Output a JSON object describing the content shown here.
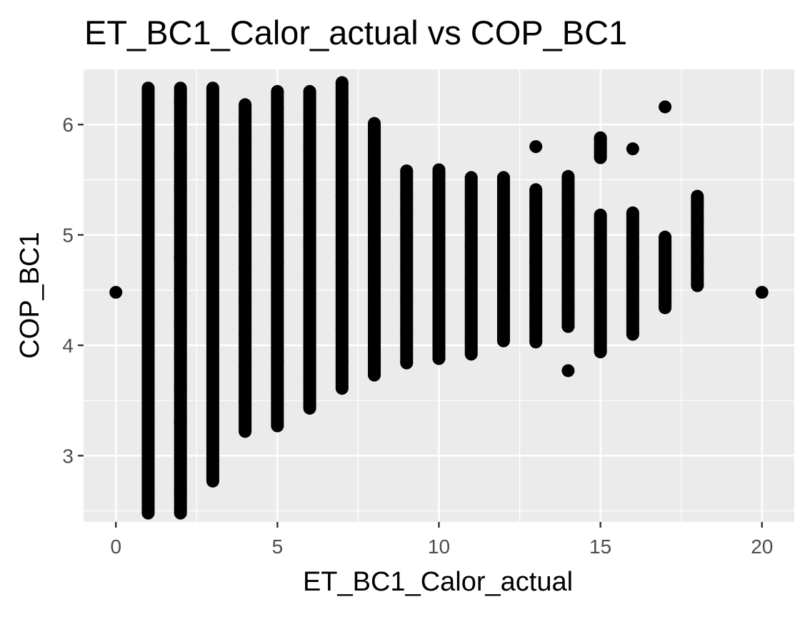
{
  "chart_data": {
    "type": "scatter",
    "title": "ET_BC1_Calor_actual vs COP_BC1",
    "xlabel": "ET_BC1_Calor_actual",
    "ylabel": "COP_BC1",
    "xlim": [
      -1,
      21
    ],
    "ylim": [
      2.4,
      6.5
    ],
    "x_ticks": [
      0,
      5,
      10,
      15,
      20
    ],
    "y_ticks": [
      3,
      4,
      5,
      6
    ],
    "x_minor_ticks": [
      2.5,
      7.5,
      12.5,
      17.5
    ],
    "y_minor_ticks": [
      2.5,
      3.5,
      4.5,
      5.5
    ],
    "grid": true,
    "point_color": "#000000",
    "panel_color": "#ebebeb",
    "series": [
      {
        "points": [
          {
            "x": 0,
            "y": 4.48
          },
          {
            "x": 1,
            "y": 2.48
          },
          {
            "x": 1,
            "y": 2.7
          },
          {
            "x": 1,
            "y": 3.0
          },
          {
            "x": 1,
            "y": 3.3
          },
          {
            "x": 1,
            "y": 3.6
          },
          {
            "x": 1,
            "y": 3.9
          },
          {
            "x": 1,
            "y": 4.2
          },
          {
            "x": 1,
            "y": 4.5
          },
          {
            "x": 1,
            "y": 4.8
          },
          {
            "x": 1,
            "y": 5.1
          },
          {
            "x": 1,
            "y": 5.45
          },
          {
            "x": 1,
            "y": 5.65
          },
          {
            "x": 1,
            "y": 5.8
          },
          {
            "x": 1,
            "y": 6.0
          },
          {
            "x": 1,
            "y": 6.2
          },
          {
            "x": 1,
            "y": 6.33
          },
          {
            "x": 2,
            "y": 2.48
          },
          {
            "x": 2,
            "y": 2.7
          },
          {
            "x": 2,
            "y": 3.0
          },
          {
            "x": 2,
            "y": 3.3
          },
          {
            "x": 2,
            "y": 3.6
          },
          {
            "x": 2,
            "y": 3.9
          },
          {
            "x": 2,
            "y": 4.2
          },
          {
            "x": 2,
            "y": 4.5
          },
          {
            "x": 2,
            "y": 4.8
          },
          {
            "x": 2,
            "y": 5.1
          },
          {
            "x": 2,
            "y": 5.4
          },
          {
            "x": 2,
            "y": 5.7
          },
          {
            "x": 2,
            "y": 6.0
          },
          {
            "x": 2,
            "y": 6.2
          },
          {
            "x": 2,
            "y": 6.33
          },
          {
            "x": 3,
            "y": 2.77
          },
          {
            "x": 3,
            "y": 2.95
          },
          {
            "x": 3,
            "y": 3.1
          },
          {
            "x": 3,
            "y": 3.4
          },
          {
            "x": 3,
            "y": 3.7
          },
          {
            "x": 3,
            "y": 4.0
          },
          {
            "x": 3,
            "y": 4.3
          },
          {
            "x": 3,
            "y": 4.6
          },
          {
            "x": 3,
            "y": 4.9
          },
          {
            "x": 3,
            "y": 5.2
          },
          {
            "x": 3,
            "y": 5.5
          },
          {
            "x": 3,
            "y": 5.8
          },
          {
            "x": 3,
            "y": 6.1
          },
          {
            "x": 3,
            "y": 6.33
          },
          {
            "x": 4,
            "y": 3.22
          },
          {
            "x": 4,
            "y": 3.5
          },
          {
            "x": 4,
            "y": 3.8
          },
          {
            "x": 4,
            "y": 4.1
          },
          {
            "x": 4,
            "y": 4.4
          },
          {
            "x": 4,
            "y": 4.7
          },
          {
            "x": 4,
            "y": 5.0
          },
          {
            "x": 4,
            "y": 5.3
          },
          {
            "x": 4,
            "y": 5.6
          },
          {
            "x": 4,
            "y": 5.85
          },
          {
            "x": 4,
            "y": 6.05
          },
          {
            "x": 4,
            "y": 6.18
          },
          {
            "x": 5,
            "y": 3.27
          },
          {
            "x": 5,
            "y": 3.55
          },
          {
            "x": 5,
            "y": 3.85
          },
          {
            "x": 5,
            "y": 4.15
          },
          {
            "x": 5,
            "y": 4.45
          },
          {
            "x": 5,
            "y": 4.75
          },
          {
            "x": 5,
            "y": 5.05
          },
          {
            "x": 5,
            "y": 5.35
          },
          {
            "x": 5,
            "y": 5.65
          },
          {
            "x": 5,
            "y": 5.95
          },
          {
            "x": 5,
            "y": 6.15
          },
          {
            "x": 5,
            "y": 6.3
          },
          {
            "x": 6,
            "y": 3.43
          },
          {
            "x": 6,
            "y": 3.7
          },
          {
            "x": 6,
            "y": 4.0
          },
          {
            "x": 6,
            "y": 4.3
          },
          {
            "x": 6,
            "y": 4.6
          },
          {
            "x": 6,
            "y": 4.9
          },
          {
            "x": 6,
            "y": 5.2
          },
          {
            "x": 6,
            "y": 5.5
          },
          {
            "x": 6,
            "y": 5.8
          },
          {
            "x": 6,
            "y": 6.08
          },
          {
            "x": 6,
            "y": 6.3
          },
          {
            "x": 7,
            "y": 3.61
          },
          {
            "x": 7,
            "y": 3.85
          },
          {
            "x": 7,
            "y": 4.15
          },
          {
            "x": 7,
            "y": 4.45
          },
          {
            "x": 7,
            "y": 4.75
          },
          {
            "x": 7,
            "y": 5.05
          },
          {
            "x": 7,
            "y": 5.35
          },
          {
            "x": 7,
            "y": 5.65
          },
          {
            "x": 7,
            "y": 5.95
          },
          {
            "x": 7,
            "y": 6.2
          },
          {
            "x": 7,
            "y": 6.38
          },
          {
            "x": 8,
            "y": 3.73
          },
          {
            "x": 8,
            "y": 4.0
          },
          {
            "x": 8,
            "y": 4.3
          },
          {
            "x": 8,
            "y": 4.6
          },
          {
            "x": 8,
            "y": 4.9
          },
          {
            "x": 8,
            "y": 5.2
          },
          {
            "x": 8,
            "y": 5.5
          },
          {
            "x": 8,
            "y": 5.75
          },
          {
            "x": 8,
            "y": 5.95
          },
          {
            "x": 8,
            "y": 6.01
          },
          {
            "x": 9,
            "y": 3.84
          },
          {
            "x": 9,
            "y": 4.1
          },
          {
            "x": 9,
            "y": 4.4
          },
          {
            "x": 9,
            "y": 4.7
          },
          {
            "x": 9,
            "y": 5.0
          },
          {
            "x": 9,
            "y": 5.2
          },
          {
            "x": 9,
            "y": 5.35
          },
          {
            "x": 9,
            "y": 5.58
          },
          {
            "x": 10,
            "y": 3.88
          },
          {
            "x": 10,
            "y": 4.1
          },
          {
            "x": 10,
            "y": 4.4
          },
          {
            "x": 10,
            "y": 4.7
          },
          {
            "x": 10,
            "y": 5.0
          },
          {
            "x": 10,
            "y": 5.25
          },
          {
            "x": 10,
            "y": 5.38
          },
          {
            "x": 10,
            "y": 5.59
          },
          {
            "x": 11,
            "y": 3.92
          },
          {
            "x": 11,
            "y": 4.06
          },
          {
            "x": 11,
            "y": 4.3
          },
          {
            "x": 11,
            "y": 4.6
          },
          {
            "x": 11,
            "y": 4.9
          },
          {
            "x": 11,
            "y": 5.15
          },
          {
            "x": 11,
            "y": 5.27
          },
          {
            "x": 11,
            "y": 5.52
          },
          {
            "x": 12,
            "y": 4.04
          },
          {
            "x": 12,
            "y": 4.3
          },
          {
            "x": 12,
            "y": 4.6
          },
          {
            "x": 12,
            "y": 4.9
          },
          {
            "x": 12,
            "y": 5.15
          },
          {
            "x": 12,
            "y": 5.38
          },
          {
            "x": 12,
            "y": 5.52
          },
          {
            "x": 13,
            "y": 4.03
          },
          {
            "x": 13,
            "y": 4.18
          },
          {
            "x": 13,
            "y": 4.45
          },
          {
            "x": 13,
            "y": 4.75
          },
          {
            "x": 13,
            "y": 5.0
          },
          {
            "x": 13,
            "y": 5.25
          },
          {
            "x": 13,
            "y": 5.41
          },
          {
            "x": 13,
            "y": 5.8
          },
          {
            "x": 14,
            "y": 3.77
          },
          {
            "x": 14,
            "y": 4.17
          },
          {
            "x": 14,
            "y": 4.35
          },
          {
            "x": 14,
            "y": 4.65
          },
          {
            "x": 14,
            "y": 4.95
          },
          {
            "x": 14,
            "y": 5.2
          },
          {
            "x": 14,
            "y": 5.34
          },
          {
            "x": 14,
            "y": 5.53
          },
          {
            "x": 15,
            "y": 3.94
          },
          {
            "x": 15,
            "y": 4.1
          },
          {
            "x": 15,
            "y": 4.4
          },
          {
            "x": 15,
            "y": 4.7
          },
          {
            "x": 15,
            "y": 4.95
          },
          {
            "x": 15,
            "y": 5.18
          },
          {
            "x": 15,
            "y": 5.7
          },
          {
            "x": 15,
            "y": 5.88
          },
          {
            "x": 16,
            "y": 4.1
          },
          {
            "x": 16,
            "y": 4.3
          },
          {
            "x": 16,
            "y": 4.55
          },
          {
            "x": 16,
            "y": 4.8
          },
          {
            "x": 16,
            "y": 4.95
          },
          {
            "x": 16,
            "y": 5.2
          },
          {
            "x": 16,
            "y": 5.78
          },
          {
            "x": 17,
            "y": 4.34
          },
          {
            "x": 17,
            "y": 4.5
          },
          {
            "x": 17,
            "y": 4.7
          },
          {
            "x": 17,
            "y": 4.86
          },
          {
            "x": 17,
            "y": 4.98
          },
          {
            "x": 17,
            "y": 6.16
          },
          {
            "x": 18,
            "y": 4.54
          },
          {
            "x": 18,
            "y": 4.64
          },
          {
            "x": 18,
            "y": 4.79
          },
          {
            "x": 18,
            "y": 4.94
          },
          {
            "x": 18,
            "y": 5.02
          },
          {
            "x": 18,
            "y": 5.14
          },
          {
            "x": 18,
            "y": 5.3
          },
          {
            "x": 18,
            "y": 5.35
          },
          {
            "x": 20,
            "y": 4.48
          }
        ]
      }
    ]
  }
}
